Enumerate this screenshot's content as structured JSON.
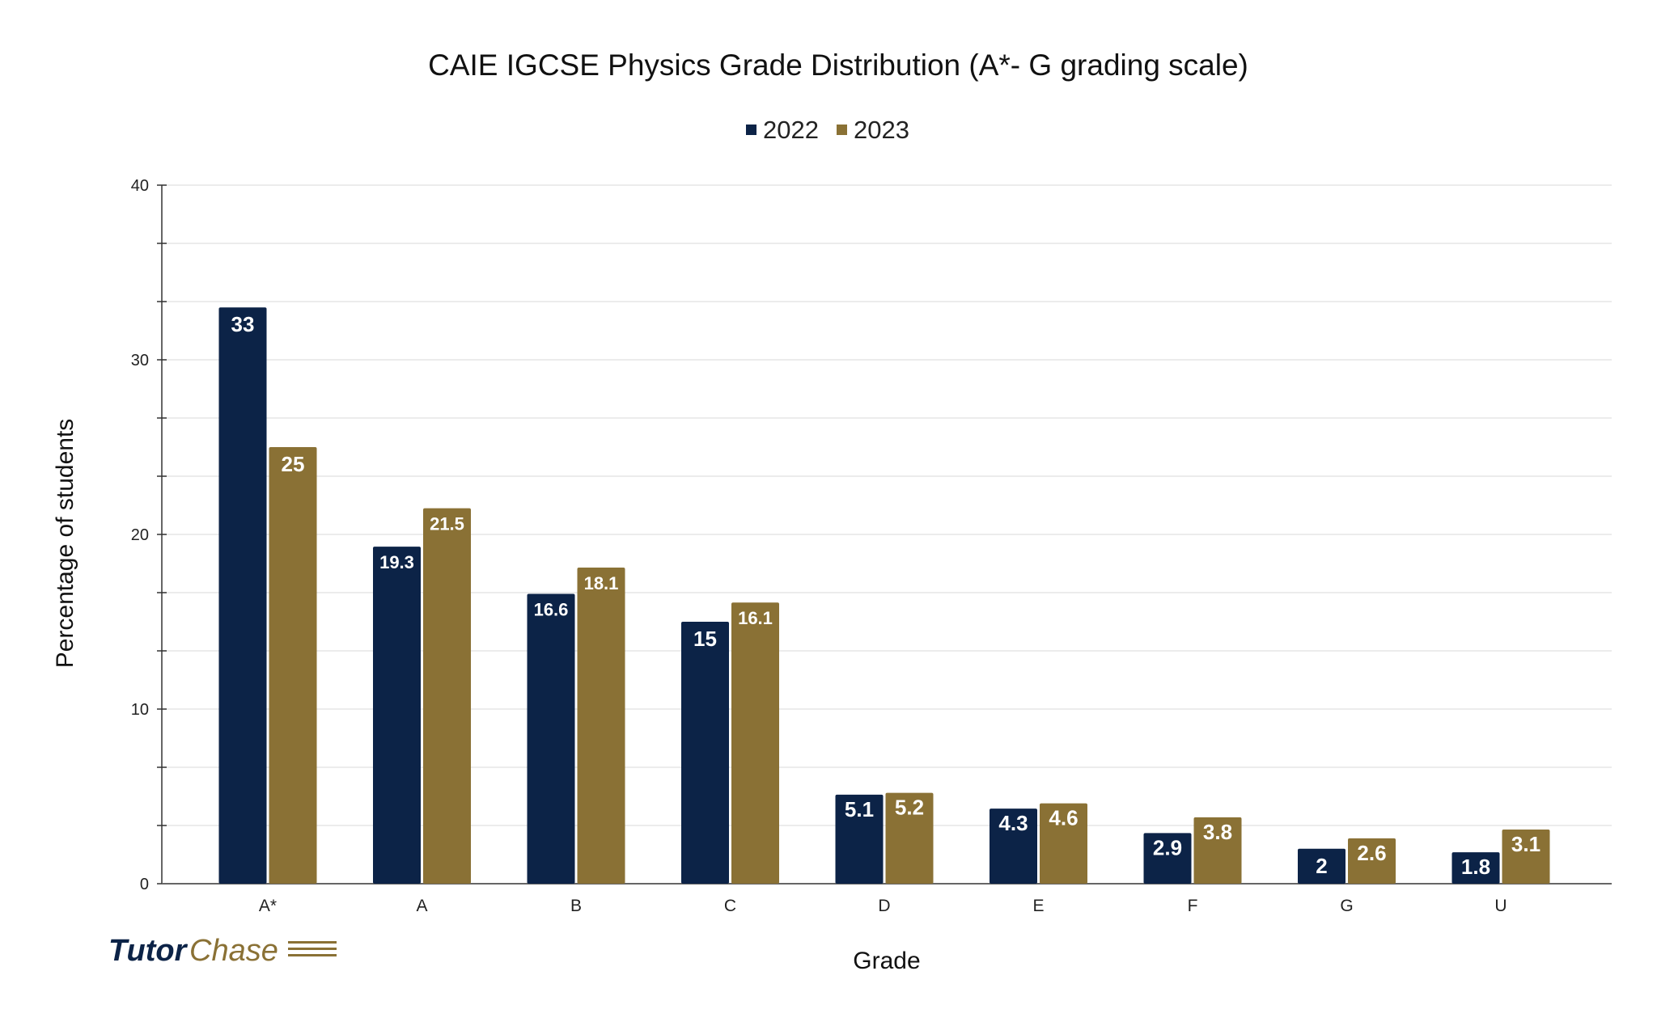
{
  "chart_data": {
    "type": "bar",
    "title": "CAIE IGCSE Physics Grade Distribution (A*- G grading scale)",
    "xlabel": "Grade",
    "ylabel": "Percentage of students",
    "categories": [
      "A*",
      "A",
      "B",
      "C",
      "D",
      "E",
      "F",
      "G",
      "U"
    ],
    "series": [
      {
        "name": "2022",
        "color": "#0c2347",
        "values": [
          33,
          19.3,
          16.6,
          15,
          5.1,
          4.3,
          2.9,
          2,
          1.8
        ]
      },
      {
        "name": "2023",
        "color": "#8a7135",
        "values": [
          25,
          21.5,
          18.1,
          16.1,
          5.2,
          4.6,
          3.8,
          2.6,
          3.1
        ]
      }
    ],
    "ylim": [
      0,
      40
    ],
    "yticks": [
      0,
      10,
      20,
      30,
      40
    ],
    "grid": true,
    "legend": "top-center",
    "data_labels": true
  },
  "logo": {
    "part1": "Tutor",
    "part2": "Chase"
  }
}
